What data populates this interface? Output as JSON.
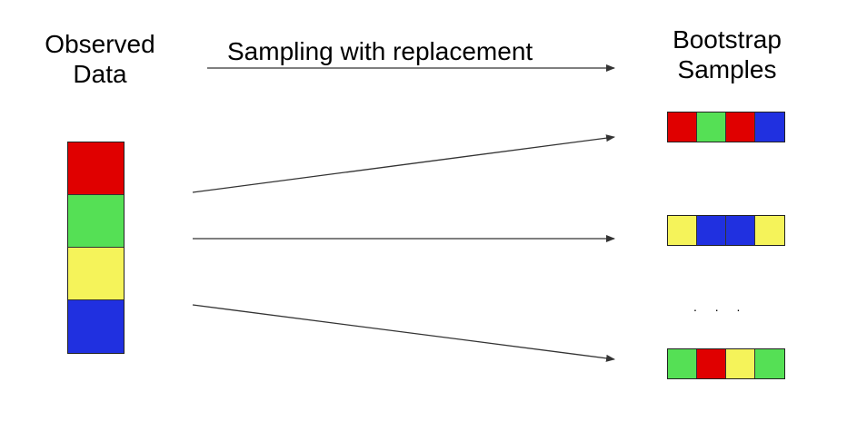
{
  "observed": {
    "title_line1": "Observed",
    "title_line2": "Data",
    "cells": [
      "#e00000",
      "#55e055",
      "#f5f35a",
      "#2030e0"
    ]
  },
  "sampling": {
    "caption": "Sampling with replacement"
  },
  "bootstrap": {
    "title_line1": "Bootstrap",
    "title_line2": "Samples",
    "samples": [
      [
        "#e00000",
        "#55e055",
        "#e00000",
        "#2030e0"
      ],
      [
        "#f5f35a",
        "#2030e0",
        "#2030e0",
        "#f5f35a"
      ],
      [
        "#55e055",
        "#e00000",
        "#f5f35a",
        "#55e055"
      ]
    ],
    "ellipsis": ". . ."
  }
}
